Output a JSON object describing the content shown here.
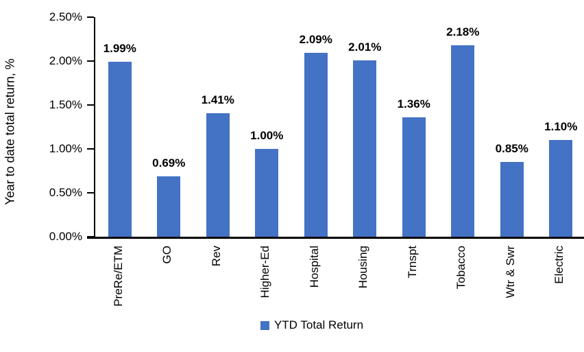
{
  "chart_data": {
    "type": "bar",
    "categories": [
      "PreRe/ETM",
      "GO",
      "Rev",
      "Higher-Ed",
      "Hospital",
      "Housing",
      "Trnspt",
      "Tobacco",
      "Wtr & Swr",
      "Electric"
    ],
    "values": [
      1.99,
      0.69,
      1.41,
      1.0,
      2.09,
      2.01,
      1.36,
      2.18,
      0.85,
      1.1
    ],
    "data_labels": [
      "1.99%",
      "0.69%",
      "1.41%",
      "1.00%",
      "2.09%",
      "2.01%",
      "1.36%",
      "2.18%",
      "0.85%",
      "1.10%"
    ],
    "title": "",
    "xlabel": "",
    "ylabel": "Year to date total return, %",
    "ylim": [
      0,
      2.5
    ],
    "ytick_step": 0.5,
    "ytick_labels": [
      "0.00%",
      "0.50%",
      "1.00%",
      "1.50%",
      "2.00%",
      "2.50%"
    ],
    "series": [
      {
        "name": "YTD Total Return",
        "values": [
          1.99,
          0.69,
          1.41,
          1.0,
          2.09,
          2.01,
          1.36,
          2.18,
          0.85,
          1.1
        ]
      }
    ],
    "bar_color": "#4472C4",
    "grid": false,
    "legend_position": "bottom"
  },
  "legend": {
    "label": "YTD Total Return",
    "marker_color": "#4472C4"
  },
  "colors": {
    "bar": "#4472C4",
    "axis": "#000000",
    "background": "#ffffff"
  }
}
